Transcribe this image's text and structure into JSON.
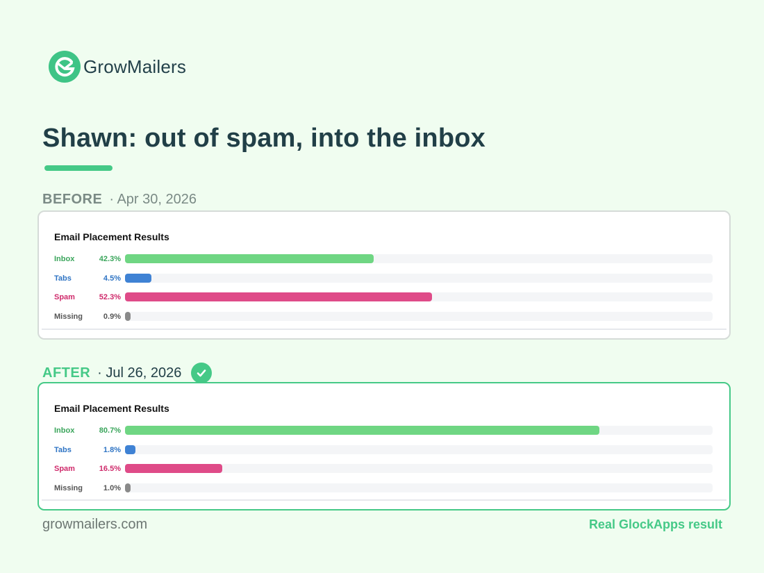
{
  "brand": {
    "name": "GrowMailers",
    "logo_icon": "growmailers-logo-icon",
    "color": "#45c987"
  },
  "title": "Shawn: out of spam, into the inbox",
  "before": {
    "tag": "BEFORE",
    "date": "· Apr 30, 2026"
  },
  "after": {
    "tag": "AFTER",
    "date": "· Jul 26, 2026",
    "badge_icon": "check-circle-icon"
  },
  "footer": {
    "site": "growmailers.com",
    "note": "Real GlockApps result"
  },
  "colors": {
    "Inbox": "#6fd683",
    "Tabs": "#3f82d4",
    "Spam": "#df4b88",
    "Missing": "#8a8a8a"
  },
  "label_colors": {
    "Inbox": "#3aa55b",
    "Tabs": "#2f74c4",
    "Spam": "#cf2a6b",
    "Missing": "#555555"
  },
  "chart_data": [
    {
      "type": "bar",
      "orientation": "horizontal",
      "title": "Email Placement Results",
      "categories": [
        "Inbox",
        "Tabs",
        "Spam",
        "Missing"
      ],
      "values": [
        42.3,
        4.5,
        52.3,
        0.9
      ],
      "value_labels": [
        "42.3%",
        "4.5%",
        "52.3%",
        "0.9%"
      ],
      "xlim": [
        0,
        100
      ]
    },
    {
      "type": "bar",
      "orientation": "horizontal",
      "title": "Email Placement Results",
      "categories": [
        "Inbox",
        "Tabs",
        "Spam",
        "Missing"
      ],
      "values": [
        80.7,
        1.8,
        16.5,
        1.0
      ],
      "value_labels": [
        "80.7%",
        "1.8%",
        "16.5%",
        "1.0%"
      ],
      "xlim": [
        0,
        100
      ]
    }
  ]
}
